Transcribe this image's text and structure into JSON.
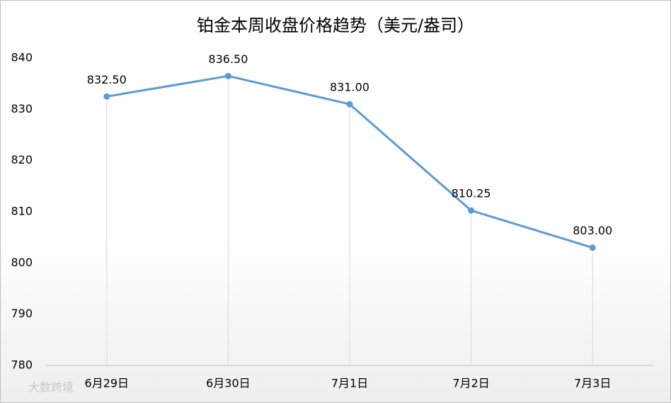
{
  "chart_data": {
    "type": "line",
    "title": "铂金本周收盘价格趋势（美元/盎司）",
    "categories": [
      "6月29日",
      "6月30日",
      "7月1日",
      "7月2日",
      "7月3日"
    ],
    "series": [
      {
        "name": "收盘价格",
        "color": "#5b9bd5",
        "values": [
          832.5,
          836.5,
          831,
          810.25,
          803
        ],
        "value_labels": [
          "832.50",
          "836.50",
          "831.00",
          "810.25",
          "803.00"
        ]
      }
    ],
    "ylim": [
      780,
      840
    ],
    "yticks": [
      780,
      790,
      800,
      810,
      820,
      830,
      840
    ],
    "drop_lines": true,
    "legend": false,
    "watermark": "大数跨境"
  }
}
